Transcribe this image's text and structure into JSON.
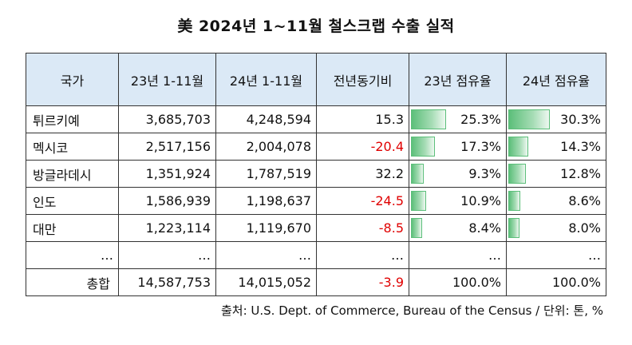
{
  "title": "美 2024년 1~11월 철스크랩 수출 실적",
  "columns": [
    "국가",
    "23년 1-11월",
    "24년 1-11월",
    "전년동기비",
    "23년 점유율",
    "24년 점유율"
  ],
  "rows": [
    {
      "country": "튀르키예",
      "y23": "3,685,703",
      "y24": "4,248,594",
      "yoy": "15.3",
      "share23": "25.3%",
      "share24": "30.3%",
      "share23_val": 25.3,
      "share24_val": 30.3,
      "negative": false
    },
    {
      "country": "멕시코",
      "y23": "2,517,156",
      "y24": "2,004,078",
      "yoy": "-20.4",
      "share23": "17.3%",
      "share24": "14.3%",
      "share23_val": 17.3,
      "share24_val": 14.3,
      "negative": true
    },
    {
      "country": "방글라데시",
      "y23": "1,351,924",
      "y24": "1,787,519",
      "yoy": "32.2",
      "share23": "9.3%",
      "share24": "12.8%",
      "share23_val": 9.3,
      "share24_val": 12.8,
      "negative": false
    },
    {
      "country": "인도",
      "y23": "1,586,939",
      "y24": "1,198,637",
      "yoy": "-24.5",
      "share23": "10.9%",
      "share24": "8.6%",
      "share23_val": 10.9,
      "share24_val": 8.6,
      "negative": true
    },
    {
      "country": "대만",
      "y23": "1,223,114",
      "y24": "1,119,670",
      "yoy": "-8.5",
      "share23": "8.4%",
      "share24": "8.0%",
      "share23_val": 8.4,
      "share24_val": 8.0,
      "negative": true
    }
  ],
  "ellipsis_row": [
    "…",
    "…",
    "…",
    "…",
    "…",
    "…"
  ],
  "total": {
    "label": "총합",
    "y23": "14,587,753",
    "y24": "14,015,052",
    "yoy": "-3.9",
    "share23": "100.0%",
    "share24": "100.0%"
  },
  "source": "출처: U.S. Dept. of Commerce, Bureau of the Census / 단위: 톤, %",
  "colors": {
    "header_bg": "#dbe9f6",
    "negative": "#e00000",
    "bar": "#5cbf7a"
  }
}
